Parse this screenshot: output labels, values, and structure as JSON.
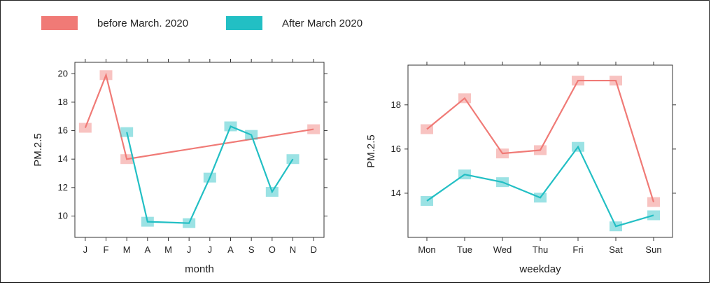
{
  "colors": {
    "before": "#f07a76",
    "after": "#22bfc4"
  },
  "legend": [
    {
      "label": "before March. 2020",
      "color": "#f07a76"
    },
    {
      "label": "After March 2020",
      "color": "#22bfc4"
    }
  ],
  "chart_data": [
    {
      "type": "line",
      "xlabel": "month",
      "ylabel": "PM.2.5",
      "categories": [
        "J",
        "F",
        "M",
        "A",
        "M",
        "J",
        "J",
        "A",
        "S",
        "O",
        "N",
        "D"
      ],
      "ylim": [
        8.5,
        20.8
      ],
      "yticks": [
        10,
        12,
        14,
        16,
        18,
        20
      ],
      "series": [
        {
          "name": "before March. 2020",
          "color": "#f07a76",
          "points": [
            {
              "x": "J",
              "y": 16.2
            },
            {
              "x": "F",
              "y": 19.9
            },
            {
              "x": "M",
              "y": 14.0
            },
            {
              "x": "D",
              "y": 16.1
            }
          ]
        },
        {
          "name": "After March 2020",
          "color": "#22bfc4",
          "points": [
            {
              "x": "M",
              "y": 15.9
            },
            {
              "x": "A",
              "y": 9.6
            },
            {
              "x": "J",
              "y": 9.5
            },
            {
              "x": "J",
              "y": 12.7
            },
            {
              "x": "A",
              "y": 16.3
            },
            {
              "x": "S",
              "y": 15.7
            },
            {
              "x": "O",
              "y": 11.7
            },
            {
              "x": "N",
              "y": 14.0
            }
          ]
        }
      ]
    },
    {
      "type": "line",
      "xlabel": "weekday",
      "ylabel": "PM.2.5",
      "categories": [
        "Mon",
        "Tue",
        "Wed",
        "Thu",
        "Fri",
        "Sat",
        "Sun"
      ],
      "ylim": [
        12.0,
        19.8
      ],
      "yticks": [
        14,
        16,
        18
      ],
      "series": [
        {
          "name": "before March. 2020",
          "color": "#f07a76",
          "values": [
            16.9,
            18.3,
            15.8,
            15.95,
            19.1,
            19.1,
            13.6
          ]
        },
        {
          "name": "After March 2020",
          "color": "#22bfc4",
          "values": [
            13.65,
            14.85,
            14.5,
            13.8,
            16.1,
            12.5,
            13.0
          ]
        }
      ]
    }
  ]
}
